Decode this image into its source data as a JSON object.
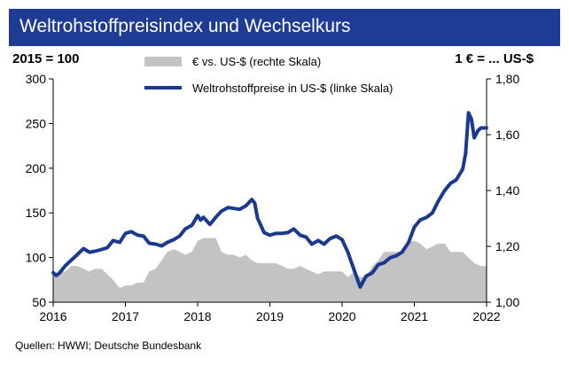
{
  "title": "Weltrohstoffpreisindex und Wechselkurs",
  "unit_left": "2015 = 100",
  "unit_right": "1 € = ... US-$",
  "source": "Quellen: HWWI; Deutsche Bundesbank",
  "colors": {
    "title_bg": "#1f3c94",
    "line": "#1b3a8f",
    "area": "#c3c3c3"
  },
  "chart_data": {
    "type": "line",
    "x_axis": {
      "range": [
        2016,
        2022
      ],
      "tick_labels": [
        "2016",
        "2017",
        "2018",
        "2019",
        "2020",
        "2021",
        "2022"
      ]
    },
    "y_left": {
      "range": [
        50,
        300
      ],
      "tick_values": [
        50,
        100,
        150,
        200,
        250,
        300
      ],
      "tick_labels": [
        "50",
        "100",
        "150",
        "200",
        "250",
        "300"
      ]
    },
    "y_right": {
      "range": [
        1.0,
        1.8
      ],
      "tick_values": [
        1.0,
        1.2,
        1.4,
        1.6,
        1.8
      ],
      "tick_labels": [
        "1,00",
        "1,20",
        "1,40",
        "1,60",
        "1,80"
      ]
    },
    "legend": {
      "placement": "top-center"
    },
    "series": [
      {
        "name": "€ vs. US-$ (rechte Skala)",
        "kind": "area",
        "axis": "right",
        "points": [
          [
            2016.0,
            1.09
          ],
          [
            2016.08,
            1.11
          ],
          [
            2016.17,
            1.11
          ],
          [
            2016.25,
            1.13
          ],
          [
            2016.33,
            1.13
          ],
          [
            2016.42,
            1.12
          ],
          [
            2016.5,
            1.11
          ],
          [
            2016.58,
            1.12
          ],
          [
            2016.67,
            1.12
          ],
          [
            2016.75,
            1.1
          ],
          [
            2016.83,
            1.08
          ],
          [
            2016.92,
            1.05
          ],
          [
            2017.0,
            1.06
          ],
          [
            2017.08,
            1.06
          ],
          [
            2017.17,
            1.07
          ],
          [
            2017.25,
            1.07
          ],
          [
            2017.33,
            1.11
          ],
          [
            2017.42,
            1.12
          ],
          [
            2017.5,
            1.15
          ],
          [
            2017.58,
            1.18
          ],
          [
            2017.67,
            1.19
          ],
          [
            2017.75,
            1.18
          ],
          [
            2017.83,
            1.17
          ],
          [
            2017.92,
            1.18
          ],
          [
            2018.0,
            1.22
          ],
          [
            2018.08,
            1.23
          ],
          [
            2018.17,
            1.23
          ],
          [
            2018.25,
            1.23
          ],
          [
            2018.33,
            1.18
          ],
          [
            2018.42,
            1.17
          ],
          [
            2018.5,
            1.17
          ],
          [
            2018.58,
            1.16
          ],
          [
            2018.67,
            1.17
          ],
          [
            2018.75,
            1.15
          ],
          [
            2018.83,
            1.14
          ],
          [
            2018.92,
            1.14
          ],
          [
            2019.0,
            1.14
          ],
          [
            2019.08,
            1.14
          ],
          [
            2019.17,
            1.13
          ],
          [
            2019.25,
            1.12
          ],
          [
            2019.33,
            1.12
          ],
          [
            2019.42,
            1.13
          ],
          [
            2019.5,
            1.12
          ],
          [
            2019.58,
            1.11
          ],
          [
            2019.67,
            1.1
          ],
          [
            2019.75,
            1.11
          ],
          [
            2019.83,
            1.11
          ],
          [
            2019.92,
            1.11
          ],
          [
            2020.0,
            1.11
          ],
          [
            2020.08,
            1.09
          ],
          [
            2020.17,
            1.11
          ],
          [
            2020.25,
            1.09
          ],
          [
            2020.33,
            1.09
          ],
          [
            2020.42,
            1.13
          ],
          [
            2020.5,
            1.15
          ],
          [
            2020.58,
            1.18
          ],
          [
            2020.67,
            1.18
          ],
          [
            2020.75,
            1.18
          ],
          [
            2020.83,
            1.18
          ],
          [
            2020.92,
            1.22
          ],
          [
            2021.0,
            1.22
          ],
          [
            2021.08,
            1.21
          ],
          [
            2021.17,
            1.19
          ],
          [
            2021.25,
            1.2
          ],
          [
            2021.33,
            1.21
          ],
          [
            2021.42,
            1.21
          ],
          [
            2021.5,
            1.18
          ],
          [
            2021.58,
            1.18
          ],
          [
            2021.67,
            1.18
          ],
          [
            2021.75,
            1.16
          ],
          [
            2021.83,
            1.14
          ],
          [
            2021.92,
            1.13
          ],
          [
            2022.0,
            1.13
          ]
        ]
      },
      {
        "name": "Weltrohstoffpreise in US-$ (linke Skala)",
        "kind": "line",
        "axis": "left",
        "points": [
          [
            2016.0,
            83
          ],
          [
            2016.04,
            80
          ],
          [
            2016.08,
            82
          ],
          [
            2016.17,
            91
          ],
          [
            2016.25,
            97
          ],
          [
            2016.33,
            103
          ],
          [
            2016.42,
            110
          ],
          [
            2016.5,
            106
          ],
          [
            2016.58,
            107
          ],
          [
            2016.67,
            109
          ],
          [
            2016.75,
            111
          ],
          [
            2016.83,
            119
          ],
          [
            2016.92,
            117
          ],
          [
            2017.0,
            127
          ],
          [
            2017.08,
            129
          ],
          [
            2017.17,
            125
          ],
          [
            2017.25,
            124
          ],
          [
            2017.33,
            116
          ],
          [
            2017.42,
            115
          ],
          [
            2017.5,
            113
          ],
          [
            2017.58,
            117
          ],
          [
            2017.67,
            120
          ],
          [
            2017.75,
            124
          ],
          [
            2017.83,
            132
          ],
          [
            2017.92,
            136
          ],
          [
            2018.0,
            147
          ],
          [
            2018.04,
            142
          ],
          [
            2018.08,
            145
          ],
          [
            2018.17,
            137
          ],
          [
            2018.25,
            145
          ],
          [
            2018.33,
            152
          ],
          [
            2018.42,
            156
          ],
          [
            2018.5,
            155
          ],
          [
            2018.58,
            154
          ],
          [
            2018.67,
            158
          ],
          [
            2018.75,
            165
          ],
          [
            2018.79,
            161
          ],
          [
            2018.83,
            144
          ],
          [
            2018.92,
            128
          ],
          [
            2019.0,
            125
          ],
          [
            2019.08,
            127
          ],
          [
            2019.17,
            127
          ],
          [
            2019.25,
            128
          ],
          [
            2019.33,
            132
          ],
          [
            2019.42,
            125
          ],
          [
            2019.5,
            123
          ],
          [
            2019.58,
            115
          ],
          [
            2019.67,
            119
          ],
          [
            2019.75,
            115
          ],
          [
            2019.83,
            121
          ],
          [
            2019.92,
            124
          ],
          [
            2020.0,
            120
          ],
          [
            2020.08,
            106
          ],
          [
            2020.17,
            85
          ],
          [
            2020.25,
            67
          ],
          [
            2020.33,
            79
          ],
          [
            2020.42,
            83
          ],
          [
            2020.5,
            92
          ],
          [
            2020.58,
            94
          ],
          [
            2020.67,
            100
          ],
          [
            2020.75,
            102
          ],
          [
            2020.83,
            106
          ],
          [
            2020.92,
            117
          ],
          [
            2021.0,
            134
          ],
          [
            2021.08,
            142
          ],
          [
            2021.17,
            145
          ],
          [
            2021.25,
            150
          ],
          [
            2021.33,
            163
          ],
          [
            2021.42,
            175
          ],
          [
            2021.5,
            183
          ],
          [
            2021.58,
            187
          ],
          [
            2021.67,
            199
          ],
          [
            2021.71,
            217
          ],
          [
            2021.75,
            262
          ],
          [
            2021.79,
            255
          ],
          [
            2021.83,
            234
          ],
          [
            2021.88,
            242
          ],
          [
            2021.92,
            245
          ],
          [
            2022.0,
            245
          ]
        ]
      }
    ]
  }
}
